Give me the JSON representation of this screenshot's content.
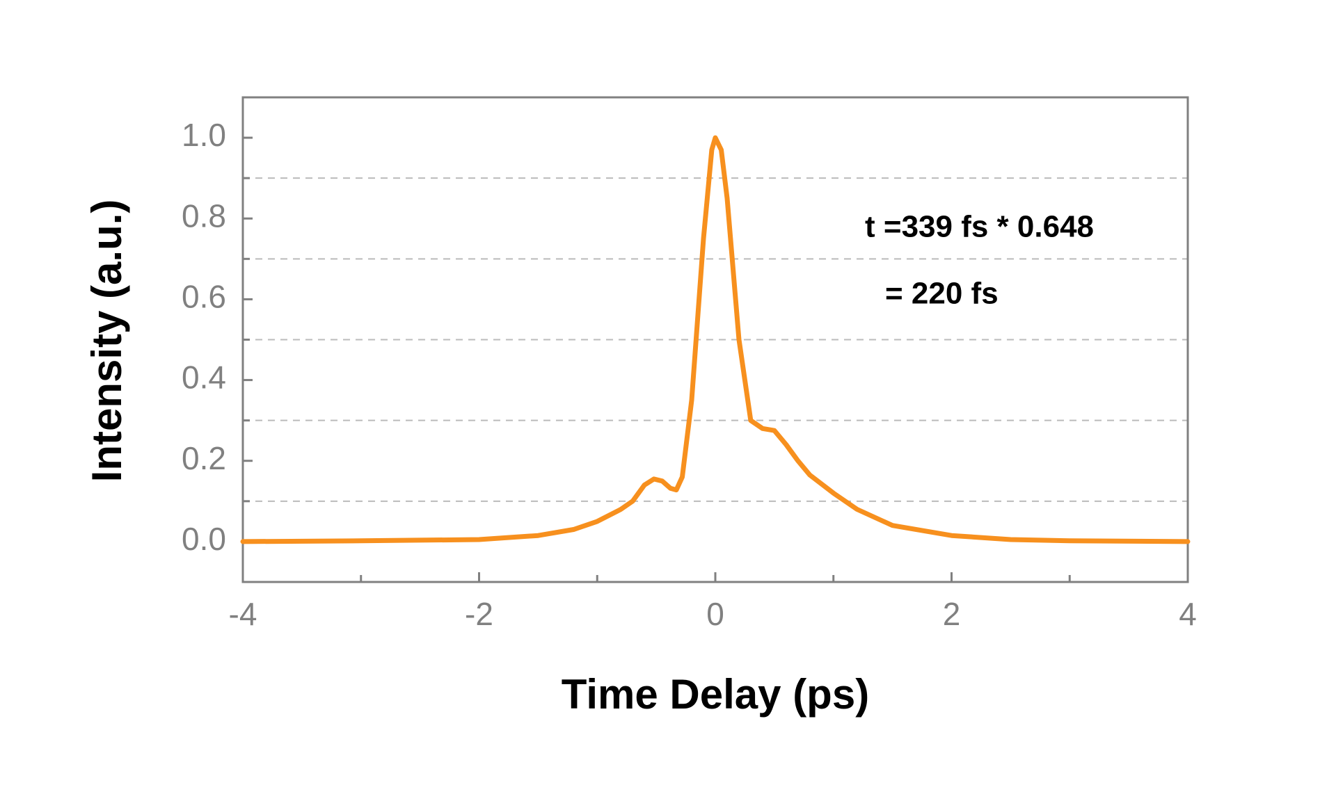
{
  "chart_data": {
    "type": "line",
    "xlabel": "Time Delay (ps)",
    "ylabel": "Intensity (a.u.)",
    "annotations": [
      "t =339 fs * 0.648",
      "= 220 fs"
    ],
    "x": [
      -4,
      -3,
      -2,
      -1.5,
      -1.2,
      -1.0,
      -0.8,
      -0.7,
      -0.6,
      -0.52,
      -0.45,
      -0.38,
      -0.33,
      -0.28,
      -0.2,
      -0.1,
      -0.03,
      0,
      0.05,
      0.1,
      0.2,
      0.3,
      0.4,
      0.5,
      0.6,
      0.7,
      0.8,
      1.0,
      1.2,
      1.5,
      2.0,
      2.5,
      3,
      4
    ],
    "series": [
      {
        "color": "#f7901e",
        "values": [
          0.0,
          0.002,
          0.005,
          0.015,
          0.03,
          0.05,
          0.08,
          0.1,
          0.14,
          0.155,
          0.15,
          0.132,
          0.128,
          0.16,
          0.35,
          0.75,
          0.97,
          1.0,
          0.97,
          0.85,
          0.5,
          0.3,
          0.28,
          0.275,
          0.24,
          0.2,
          0.165,
          0.12,
          0.08,
          0.04,
          0.015,
          0.005,
          0.002,
          0.0
        ]
      }
    ],
    "xlim": [
      -4,
      4
    ],
    "xticks": [
      -4,
      -2,
      0,
      2,
      4
    ],
    "xminor": [
      -3,
      -1,
      1,
      3
    ],
    "ylim": [
      -0.1,
      1.1
    ],
    "yticks": [
      {
        "value": 0,
        "label": "0.0"
      },
      {
        "value": 0.2,
        "label": "0.2"
      },
      {
        "value": 0.4,
        "label": "0.4"
      },
      {
        "value": 0.6,
        "label": "0.6"
      },
      {
        "value": 0.8,
        "label": "0.8"
      },
      {
        "value": 1,
        "label": "1.0"
      }
    ],
    "yminor": [
      0.1,
      0.3,
      0.5,
      0.7,
      0.9
    ],
    "grid": true
  }
}
